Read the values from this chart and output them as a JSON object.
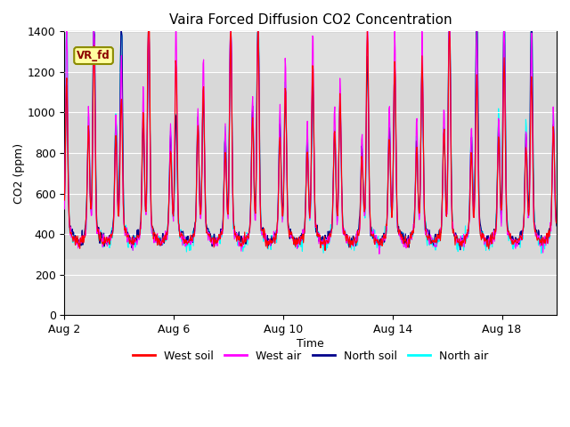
{
  "title": "Vaira Forced Diffusion CO2 Concentration",
  "xlabel": "Time",
  "ylabel": "CO2 (ppm)",
  "ylim": [
    0,
    1400
  ],
  "yticks": [
    0,
    200,
    400,
    600,
    800,
    1000,
    1200,
    1400
  ],
  "xtick_labels": [
    "Aug 2",
    "Aug 6",
    "Aug 10",
    "Aug 14",
    "Aug 18"
  ],
  "xtick_positions": [
    1,
    5,
    9,
    13,
    17
  ],
  "shade_ymin": 280,
  "shade_ymax": 1200,
  "legend_labels": [
    "West soil",
    "West air",
    "North soil",
    "North air"
  ],
  "legend_colors": [
    "#ff0000",
    "#ff00ff",
    "#00008b",
    "#00ffff"
  ],
  "vr_fd_label": "VR_fd",
  "n_days": 18
}
